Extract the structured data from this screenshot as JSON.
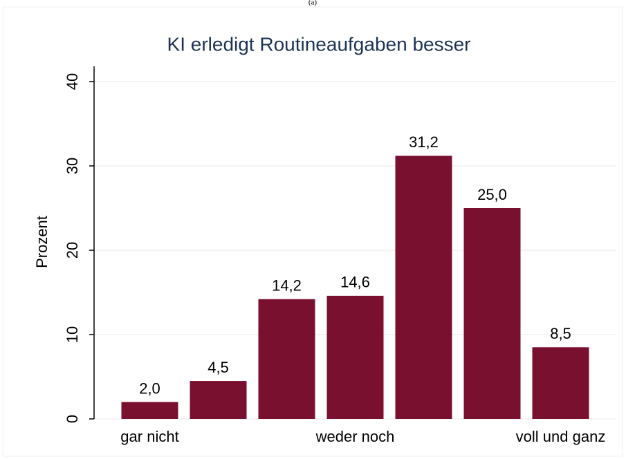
{
  "caption": "(a)",
  "chart_data": {
    "type": "bar",
    "title": "KI erledigt Routineaufgaben besser",
    "ylabel": "Prozent",
    "categories": [
      "gar nicht",
      null,
      null,
      "weder noch",
      null,
      null,
      "voll und ganz"
    ],
    "values": [
      2.0,
      4.5,
      14.2,
      14.6,
      31.2,
      25.0,
      8.5
    ],
    "value_labels": [
      "2,0",
      "4,5",
      "14,2",
      "14,6",
      "31,2",
      "25,0",
      "8,5"
    ],
    "color": "#7a1030",
    "ylim": [
      0,
      40
    ],
    "yticks": [
      0,
      10,
      20,
      30,
      40
    ],
    "grid": true
  }
}
